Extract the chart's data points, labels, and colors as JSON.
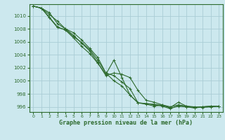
{
  "title": "Graphe pression niveau de la mer (hPa)",
  "bg_color": "#cce8ee",
  "grid_color": "#aacdd6",
  "line_color": "#2d6a2d",
  "marker_color": "#2d6a2d",
  "xlim": [
    -0.5,
    23.5
  ],
  "ylim": [
    995.2,
    1011.8
  ],
  "yticks": [
    996,
    998,
    1000,
    1002,
    1004,
    1006,
    1008,
    1010
  ],
  "xticks": [
    0,
    1,
    2,
    3,
    4,
    5,
    6,
    7,
    8,
    9,
    10,
    11,
    12,
    13,
    14,
    15,
    16,
    17,
    18,
    19,
    20,
    21,
    22,
    23
  ],
  "lines": [
    [
      1011.5,
      1011.2,
      1010.2,
      1009.2,
      1008.0,
      1007.4,
      1006.3,
      1005.0,
      1003.6,
      1001.2,
      1000.0,
      999.2,
      997.8,
      996.6,
      996.4,
      996.1,
      996.3,
      995.8,
      996.1,
      996.0,
      995.8,
      996.0,
      996.1,
      996.1
    ],
    [
      1011.5,
      1011.2,
      1010.5,
      1008.8,
      1008.0,
      1007.0,
      1005.8,
      1004.6,
      1002.8,
      1000.8,
      1001.2,
      1001.0,
      1000.5,
      998.5,
      997.0,
      996.7,
      996.3,
      996.0,
      996.3,
      996.1,
      996.0,
      995.9,
      996.0,
      996.1
    ],
    [
      1011.5,
      1011.2,
      1009.8,
      1008.3,
      1007.8,
      1006.6,
      1005.3,
      1004.2,
      1002.7,
      1001.0,
      1003.2,
      1000.5,
      997.8,
      996.6,
      996.5,
      996.3,
      996.1,
      995.7,
      996.2,
      996.0,
      995.9,
      996.0,
      996.1,
      996.1
    ],
    [
      1011.5,
      1011.2,
      1009.7,
      1008.2,
      1007.9,
      1006.8,
      1005.9,
      1004.8,
      1003.2,
      1001.2,
      1000.8,
      999.8,
      998.8,
      996.6,
      996.5,
      996.4,
      996.2,
      995.9,
      996.7,
      996.1,
      995.9,
      996.0,
      996.0,
      996.1
    ]
  ]
}
